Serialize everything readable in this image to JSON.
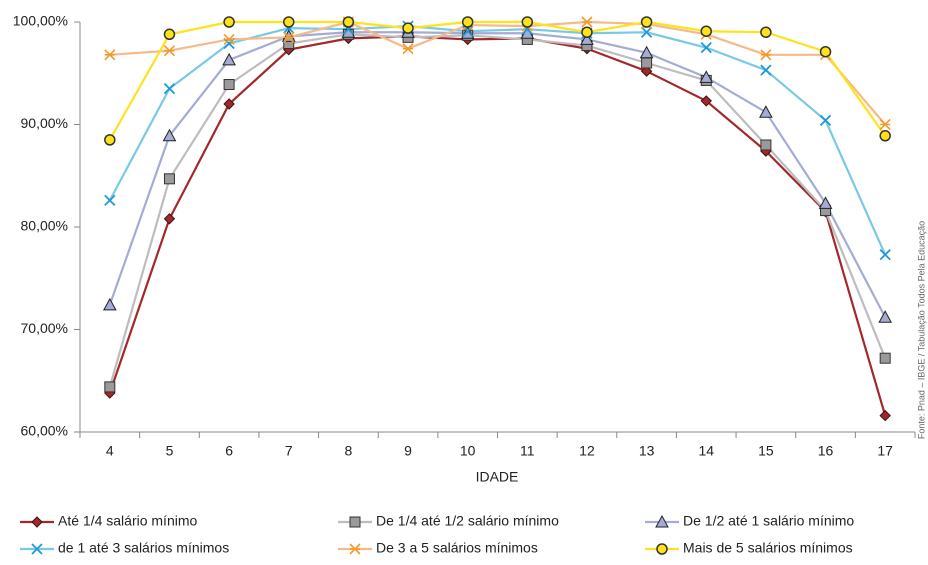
{
  "chart_data": {
    "type": "line",
    "x_label": "IDADE",
    "source": "Fonte: Pnad – IBGE / Tabulação Todos Pela Educação",
    "categories": [
      "4",
      "5",
      "6",
      "7",
      "8",
      "9",
      "10",
      "11",
      "12",
      "13",
      "14",
      "15",
      "16",
      "17"
    ],
    "ylim": [
      60,
      100
    ],
    "yticks": [
      {
        "value": 60,
        "label": "60,00%"
      },
      {
        "value": 70,
        "label": "70,00%"
      },
      {
        "value": 80,
        "label": "80,00%"
      },
      {
        "value": 90,
        "label": "90,00%"
      },
      {
        "value": 100,
        "label": "100,00%"
      }
    ],
    "grid": false,
    "legend": "bottom",
    "series": [
      {
        "name": "Até 1/4 salário mínimo",
        "color": "#a3282c",
        "marker": "diamond",
        "values": [
          63.8,
          80.8,
          92.0,
          97.3,
          98.4,
          98.6,
          98.3,
          98.4,
          97.4,
          95.2,
          92.3,
          87.4,
          81.5,
          61.6
        ]
      },
      {
        "name": "De 1/4 até 1/2 salário mínimo",
        "color": "#bdbdbd",
        "marker": "square",
        "values": [
          64.4,
          84.7,
          93.9,
          97.9,
          98.8,
          98.5,
          98.7,
          98.3,
          97.7,
          96.0,
          94.3,
          88.0,
          81.6,
          67.2
        ]
      },
      {
        "name": "De 1/2 até 1 salário mínimo",
        "color": "#a4abd4",
        "marker": "triangle",
        "values": [
          72.4,
          88.9,
          96.3,
          98.6,
          99.0,
          99.0,
          98.9,
          98.9,
          98.3,
          97.0,
          94.6,
          91.2,
          82.3,
          71.2
        ]
      },
      {
        "name": "de 1 até 3 salários mínimos",
        "color": "#79c9e6",
        "marker": "x",
        "values": [
          82.6,
          93.5,
          97.9,
          99.4,
          99.3,
          99.6,
          99.1,
          99.3,
          98.9,
          99.0,
          97.5,
          95.3,
          90.4,
          77.3
        ]
      },
      {
        "name": "De 3 a 5 salários mínimos",
        "color": "#f6b98a",
        "marker": "asterisk",
        "values": [
          96.8,
          97.2,
          98.3,
          98.5,
          100,
          97.4,
          99.7,
          99.6,
          100,
          99.8,
          98.8,
          96.8,
          96.8,
          90.0
        ]
      },
      {
        "name": "Mais de 5 salários mínimos",
        "color": "#ffe21a",
        "marker": "circle",
        "values": [
          88.5,
          98.8,
          100,
          100,
          100,
          99.4,
          100,
          100,
          99.0,
          100,
          99.1,
          99.0,
          97.1,
          88.9
        ]
      }
    ]
  }
}
